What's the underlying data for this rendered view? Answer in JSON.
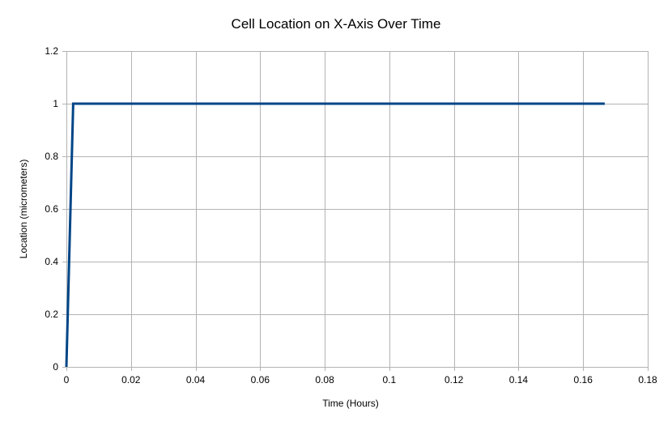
{
  "chart_data": {
    "type": "line",
    "title": "Cell Location on X-Axis Over Time",
    "xlabel": "Time (Hours)",
    "ylabel": "Location (micrometers)",
    "xlim": [
      0,
      0.18
    ],
    "ylim": [
      0,
      1.2
    ],
    "x_ticks": [
      0,
      0.02,
      0.04,
      0.06,
      0.08,
      0.1,
      0.12,
      0.14,
      0.16,
      0.18
    ],
    "x_tick_labels": [
      "0",
      "0.02",
      "0.04",
      "0.06",
      "0.08",
      "0.1",
      "0.12",
      "0.14",
      "0.16",
      "0.18"
    ],
    "y_ticks": [
      0,
      0.2,
      0.4,
      0.6,
      0.8,
      1,
      1.2
    ],
    "y_tick_labels": [
      "0",
      "0.2",
      "0.4",
      "0.6",
      "0.8",
      "1",
      "1.2"
    ],
    "grid": true,
    "legend": "none",
    "series": [
      {
        "color": "#004586",
        "x": [
          0,
          0.0021,
          0.1667
        ],
        "y": [
          0,
          1,
          1
        ]
      }
    ]
  }
}
